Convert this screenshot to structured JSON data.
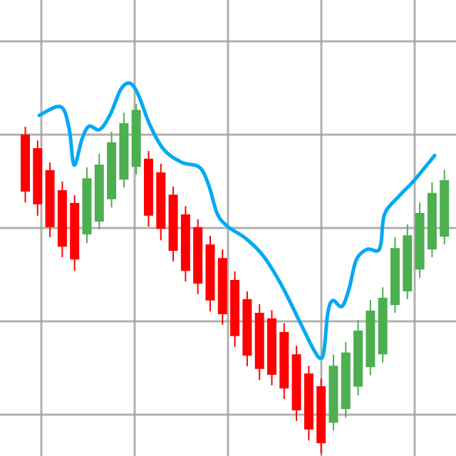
{
  "chart_data": {
    "type": "candlestick",
    "title": "",
    "xlabel": "",
    "ylabel": "",
    "ylim": [
      0,
      100
    ],
    "grid": true,
    "legend": "none",
    "colors": {
      "up": "#4caf50",
      "down": "#ff0000",
      "line": "#03a9f4",
      "grid": "#9e9e9e"
    },
    "candles": [
      {
        "o": 70.5,
        "h": 72.2,
        "l": 55.6,
        "c": 58.0
      },
      {
        "o": 67.5,
        "h": 69.2,
        "l": 52.7,
        "c": 55.2
      },
      {
        "o": 62.7,
        "h": 64.4,
        "l": 48.0,
        "c": 50.2
      },
      {
        "o": 58.3,
        "h": 60.2,
        "l": 43.6,
        "c": 45.9
      },
      {
        "o": 55.5,
        "h": 57.2,
        "l": 40.6,
        "c": 43.1
      },
      {
        "o": 48.6,
        "h": 63.3,
        "l": 46.7,
        "c": 60.9
      },
      {
        "o": 51.4,
        "h": 66.3,
        "l": 49.7,
        "c": 63.9
      },
      {
        "o": 56.3,
        "h": 71.1,
        "l": 54.5,
        "c": 68.8
      },
      {
        "o": 60.6,
        "h": 75.3,
        "l": 58.9,
        "c": 73.0
      },
      {
        "o": 63.4,
        "h": 77.2,
        "l": 61.7,
        "c": 75.9
      },
      {
        "o": 65.2,
        "h": 66.9,
        "l": 50.3,
        "c": 52.7
      },
      {
        "o": 62.2,
        "h": 64.1,
        "l": 47.3,
        "c": 49.8
      },
      {
        "o": 57.3,
        "h": 59.1,
        "l": 42.7,
        "c": 45.0
      },
      {
        "o": 53.0,
        "h": 54.8,
        "l": 38.3,
        "c": 40.6
      },
      {
        "o": 50.2,
        "h": 51.9,
        "l": 35.5,
        "c": 37.8
      },
      {
        "o": 46.4,
        "h": 48.3,
        "l": 31.7,
        "c": 34.1
      },
      {
        "o": 43.4,
        "h": 45.3,
        "l": 28.8,
        "c": 31.1
      },
      {
        "o": 38.6,
        "h": 40.5,
        "l": 23.9,
        "c": 26.3
      },
      {
        "o": 34.4,
        "h": 36.1,
        "l": 19.7,
        "c": 22.0
      },
      {
        "o": 31.4,
        "h": 33.3,
        "l": 16.7,
        "c": 19.1
      },
      {
        "o": 30.2,
        "h": 32.0,
        "l": 15.5,
        "c": 17.8
      },
      {
        "o": 27.2,
        "h": 29.1,
        "l": 12.5,
        "c": 14.8
      },
      {
        "o": 22.3,
        "h": 24.2,
        "l": 7.7,
        "c": 10.0
      },
      {
        "o": 18.1,
        "h": 19.8,
        "l": 3.4,
        "c": 5.8
      },
      {
        "o": 15.3,
        "h": 17.0,
        "l": 0.5,
        "c": 2.8
      },
      {
        "o": 7.3,
        "h": 22.2,
        "l": 5.6,
        "c": 19.8
      },
      {
        "o": 10.3,
        "h": 25.0,
        "l": 8.4,
        "c": 22.7
      },
      {
        "o": 15.2,
        "h": 29.8,
        "l": 13.3,
        "c": 27.5
      },
      {
        "o": 19.5,
        "h": 34.2,
        "l": 17.7,
        "c": 31.9
      },
      {
        "o": 22.3,
        "h": 37.0,
        "l": 20.5,
        "c": 34.7
      },
      {
        "o": 33.1,
        "h": 48.0,
        "l": 31.4,
        "c": 45.6
      },
      {
        "o": 36.1,
        "h": 50.8,
        "l": 34.4,
        "c": 48.4
      },
      {
        "o": 40.9,
        "h": 55.6,
        "l": 39.1,
        "c": 53.3
      },
      {
        "o": 45.3,
        "h": 60.0,
        "l": 43.6,
        "c": 57.7
      },
      {
        "o": 48.1,
        "h": 62.8,
        "l": 46.4,
        "c": 60.5
      }
    ],
    "trend_line": [
      [
        1.13,
        74.7
      ],
      [
        2.86,
        76.6
      ],
      [
        3.55,
        71.9
      ],
      [
        3.96,
        63.8
      ],
      [
        4.6,
        69.5
      ],
      [
        5.17,
        72.3
      ],
      [
        6.04,
        71.6
      ],
      [
        6.91,
        75.0
      ],
      [
        7.77,
        80.5
      ],
      [
        8.53,
        81.7
      ],
      [
        9.22,
        78.9
      ],
      [
        10.09,
        72.7
      ],
      [
        11.24,
        67.2
      ],
      [
        12.69,
        64.4
      ],
      [
        14.13,
        63.3
      ],
      [
        14.88,
        59.4
      ],
      [
        15.58,
        53.1
      ],
      [
        16.44,
        50.3
      ],
      [
        17.89,
        47.7
      ],
      [
        19.33,
        43.8
      ],
      [
        20.78,
        37.5
      ],
      [
        22.22,
        29.7
      ],
      [
        23.38,
        23.4
      ],
      [
        23.96,
        21.4
      ],
      [
        24.25,
        23.4
      ],
      [
        24.54,
        31.3
      ],
      [
        24.94,
        34.1
      ],
      [
        25.69,
        32.8
      ],
      [
        26.27,
        36.7
      ],
      [
        26.85,
        43.0
      ],
      [
        27.72,
        45.3
      ],
      [
        28.58,
        45.0
      ],
      [
        28.87,
        46.9
      ],
      [
        29.16,
        53.1
      ],
      [
        30.32,
        57.0
      ],
      [
        31.47,
        60.2
      ],
      [
        33.21,
        65.9
      ]
    ]
  }
}
